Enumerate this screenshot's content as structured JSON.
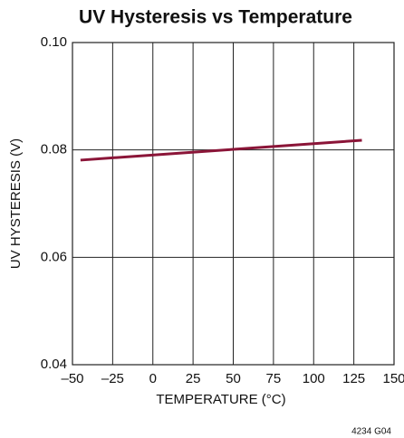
{
  "chart_data": {
    "type": "line",
    "title": "UV Hysteresis vs Temperature",
    "xlabel": "TEMPERATURE (°C)",
    "ylabel": "UV HYSTERESIS (V)",
    "note": "4234 G04",
    "x": [
      -45,
      130
    ],
    "series": [
      {
        "color": "#8b1538",
        "values": [
          0.0781,
          0.0818
        ]
      }
    ],
    "xlim": [
      -50,
      150
    ],
    "xticks": [
      {
        "value": -50,
        "label": "–50"
      },
      {
        "value": -25,
        "label": "–25"
      },
      0,
      25,
      50,
      75,
      100,
      125,
      150
    ],
    "ylim": [
      0.04,
      0.1
    ],
    "yticks": [
      0.04,
      0.06,
      0.08,
      {
        "value": 0.1,
        "label": "0.10"
      }
    ],
    "grid": true
  }
}
